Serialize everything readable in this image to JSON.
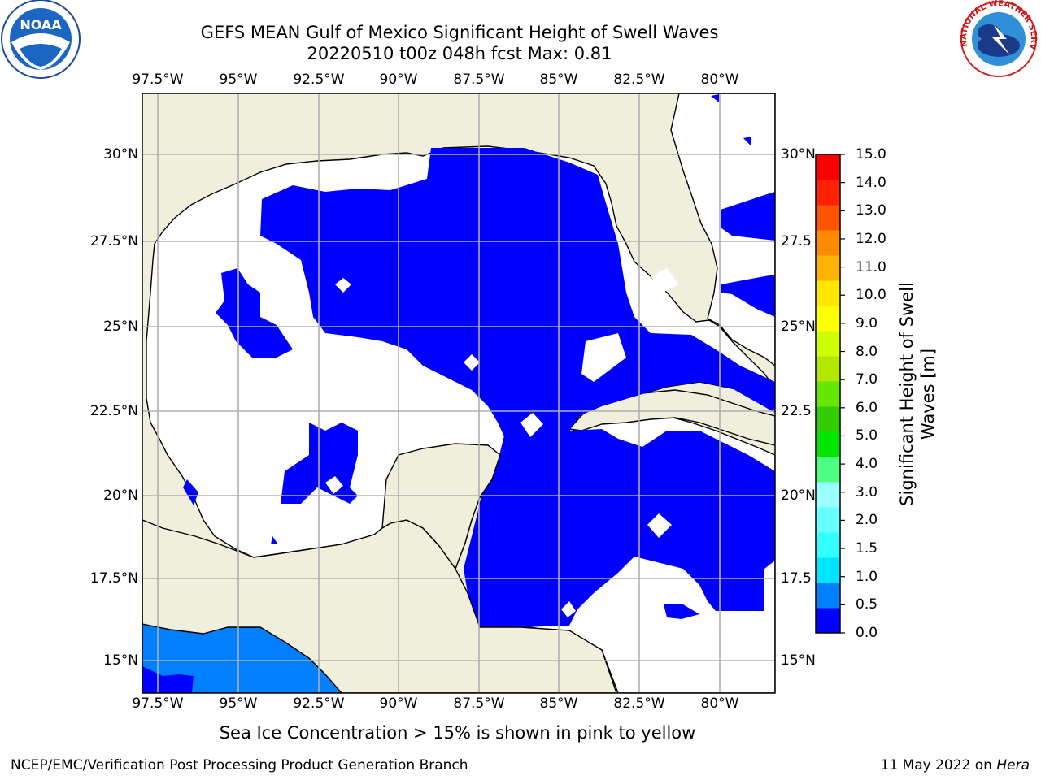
{
  "title_line1": "GEFS MEAN Gulf of Mexico Significant Height of Swell Waves",
  "title_line2": "20220510 t00z 048h fcst   Max: 0.81",
  "caption": "Sea Ice Concentration > 15% is shown in pink to yellow",
  "footer_left": "NCEP/EMC/Verification Post Processing Product Generation Branch",
  "footer_date": "11 May 2022 on",
  "footer_host": "Hera",
  "logos": {
    "left": "noaa-logo",
    "left_text": "NOAA",
    "right": "nws-logo",
    "right_text": "NATIONAL WEATHER SERVICE"
  },
  "map": {
    "lon_ticks_top": [
      "97.5°W",
      "95°W",
      "92.5°W",
      "90°W",
      "87.5°W",
      "85°W",
      "82.5°W",
      "80°W"
    ],
    "lon_ticks_bottom": [
      "97.5°W",
      "95°W",
      "92.5°W",
      "90°W",
      "87.5°W",
      "85°W",
      "82.5°W",
      "80°W"
    ],
    "lat_ticks_left": [
      "30°N",
      "27.5°N",
      "25°N",
      "22.5°N",
      "20°N",
      "17.5°N",
      "15°N"
    ],
    "lat_ticks_right": [
      "30°N",
      "27.5",
      "25°N",
      "22.5",
      "20°N",
      "17.5",
      "15°N"
    ],
    "land_color": "#efefdc",
    "water_color": "#ffffff",
    "low_swell_color": "#0000ff",
    "mid_swell_color": "#0080ff"
  },
  "colorbar": {
    "label": "Significant Height of Swell Waves [m]",
    "ticks": [
      "15.0",
      "14.0",
      "13.0",
      "12.0",
      "11.0",
      "10.0",
      "9.0",
      "8.0",
      "7.0",
      "6.0",
      "5.0",
      "4.0",
      "3.0",
      "2.0",
      "1.5",
      "1.0",
      "0.5",
      "0.0"
    ],
    "colors": [
      "#0000ff",
      "#0080ff",
      "#00e5ff",
      "#33ffff",
      "#66ffff",
      "#99ffff",
      "#4dff80",
      "#00e600",
      "#33cc00",
      "#66e600",
      "#b3e600",
      "#ccff00",
      "#ffff00",
      "#ffe600",
      "#ffb300",
      "#ff8c00",
      "#ff5500",
      "#ff2200",
      "#ff0000"
    ]
  }
}
